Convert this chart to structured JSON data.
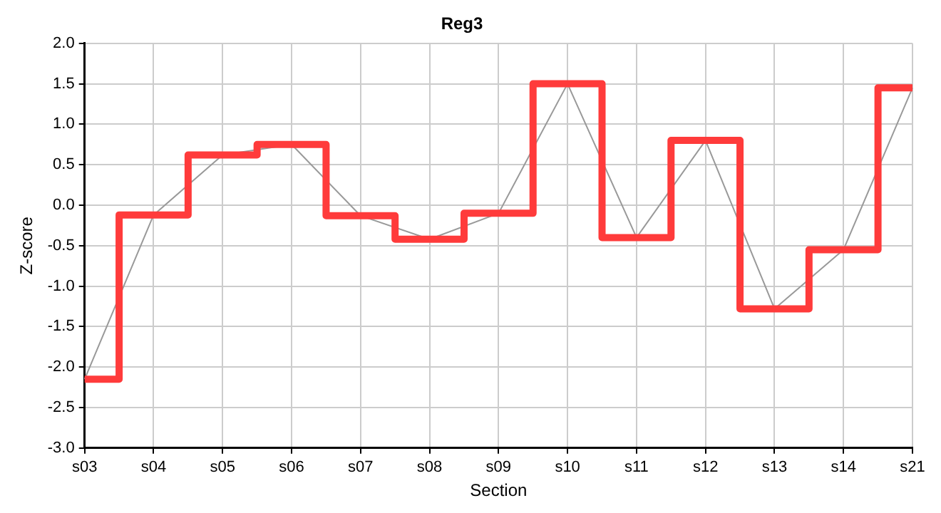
{
  "chart_data": {
    "type": "step",
    "title": "Reg3",
    "xlabel": "Section",
    "ylabel": "Z-score",
    "categories": [
      "s03",
      "s04",
      "s05",
      "s06",
      "s07",
      "s08",
      "s09",
      "s10",
      "s11",
      "s12",
      "s13",
      "s14",
      "s21"
    ],
    "series": [
      {
        "type": "line",
        "color": "#999999",
        "values": [
          -2.15,
          -0.12,
          0.62,
          0.75,
          -0.13,
          -0.42,
          -0.1,
          1.5,
          -0.4,
          0.8,
          -1.28,
          -0.55,
          1.45
        ]
      },
      {
        "color": "#ff3b3b",
        "values": [
          -2.15,
          -0.12,
          0.62,
          0.75,
          -0.13,
          -0.42,
          -0.1,
          1.5,
          -0.4,
          0.8,
          -1.28,
          -0.55,
          1.45
        ]
      }
    ],
    "ylim": [
      -3,
      2
    ],
    "yticks": [
      {
        "value": -3,
        "label": "-3.0"
      },
      -2.5,
      {
        "value": -2,
        "label": "-2.0"
      },
      -1.5,
      {
        "value": -1,
        "label": "-1.0"
      },
      -0.5,
      {
        "value": 0,
        "label": "0.0"
      },
      0.5,
      {
        "value": 1,
        "label": "1.0"
      },
      1.5,
      {
        "value": 2,
        "label": "2.0"
      }
    ],
    "grid": true,
    "legend": false,
    "marker": "none",
    "line_style": "solid"
  }
}
